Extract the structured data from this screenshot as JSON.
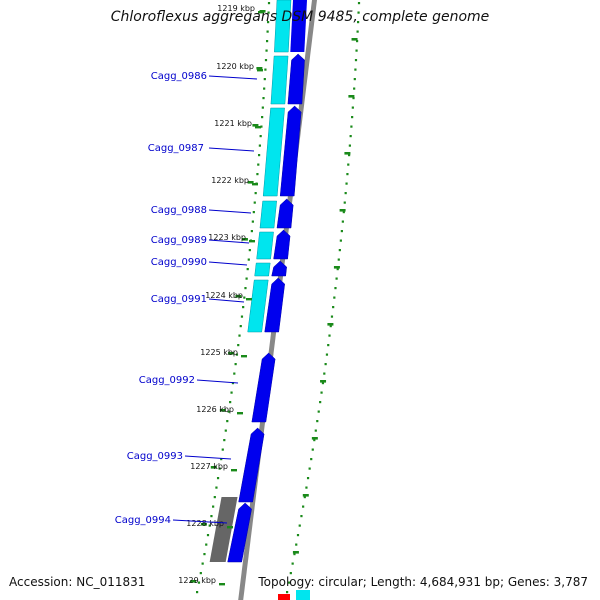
{
  "title": "Chloroflexus aggregans DSM 9485, complete genome",
  "footer": {
    "accession": "Accession: NC_011831",
    "topology": "Topology: circular; Length: 4,684,931 bp; Genes: 3,787"
  },
  "ticks": [
    "1219 kbp",
    "1220 kbp",
    "1221 kbp",
    "1222 kbp",
    "1223 kbp",
    "1224 kbp",
    "1225 kbp",
    "1226 kbp",
    "1227 kbp",
    "1228 kbp",
    "1229 kbp"
  ],
  "genes": [
    "Cagg_0986",
    "Cagg_0987",
    "Cagg_0988",
    "Cagg_0989",
    "Cagg_0990",
    "Cagg_0991",
    "Cagg_0992",
    "Cagg_0993",
    "Cagg_0994"
  ],
  "colors": {
    "forward_cds": "#0000ee",
    "feature_band": "#00e5ee",
    "other_feature": "#666666",
    "backbone": "#888888",
    "gc_dots": "#1a8a1a",
    "red_feature": "#ff0000",
    "gene_label": "#0000cc"
  }
}
